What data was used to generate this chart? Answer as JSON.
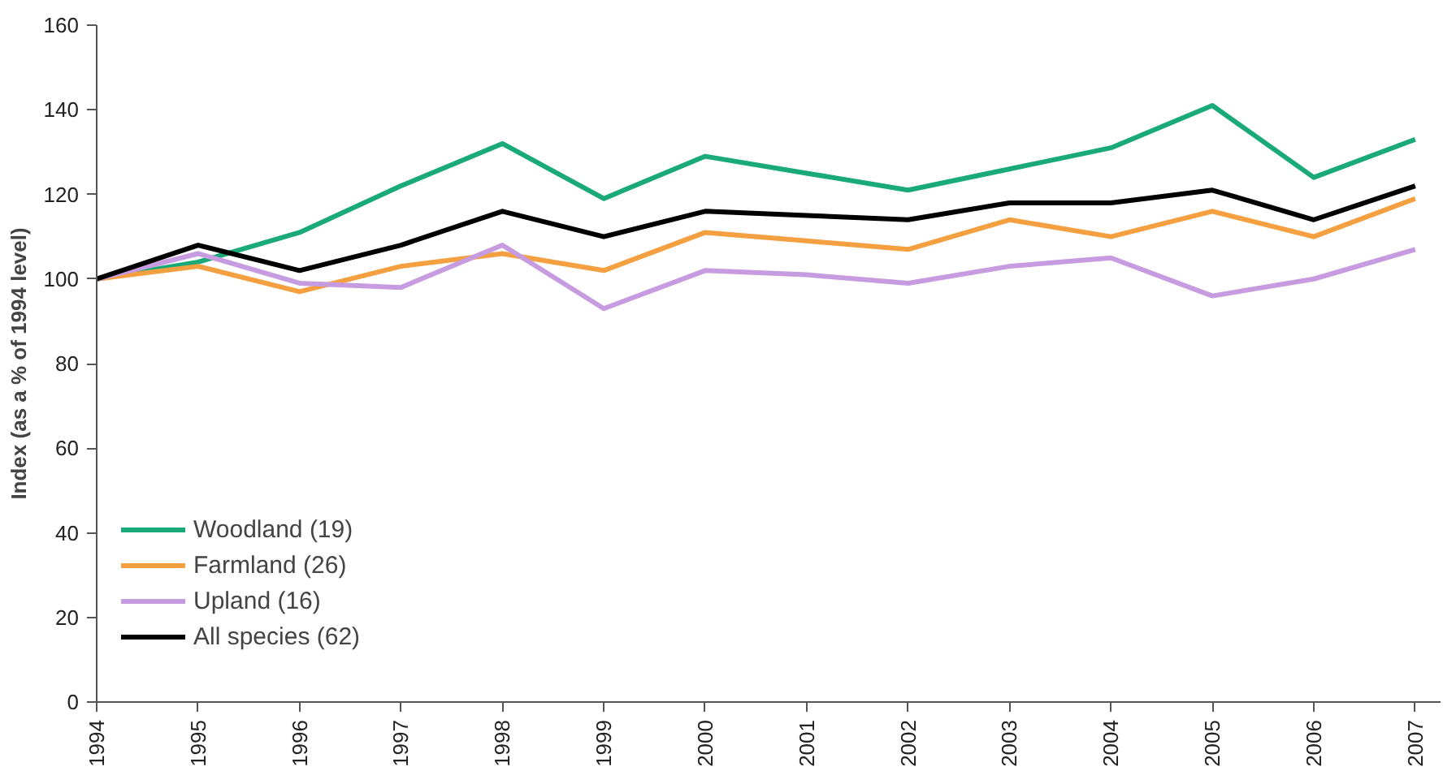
{
  "chart_data": {
    "type": "line",
    "ylabel": "Index (as a % of 1994 level)",
    "categories": [
      "1994",
      "1995",
      "1996",
      "1997",
      "1998",
      "1999",
      "2000",
      "2001",
      "2002",
      "2003",
      "2004",
      "2005",
      "2006",
      "2007"
    ],
    "series": [
      {
        "name": "Woodland (19)",
        "color": "#1aaa7a",
        "values": [
          100,
          104,
          111,
          122,
          132,
          119,
          129,
          125,
          121,
          126,
          131,
          141,
          124,
          133
        ]
      },
      {
        "name": "Farmland (26)",
        "color": "#f5a040",
        "values": [
          100,
          103,
          97,
          103,
          106,
          102,
          111,
          109,
          107,
          114,
          110,
          116,
          110,
          119
        ]
      },
      {
        "name": "Upland (16)",
        "color": "#c79be0",
        "values": [
          100,
          106,
          99,
          98,
          108,
          93,
          102,
          101,
          99,
          103,
          105,
          96,
          100,
          107
        ]
      },
      {
        "name": "All species (62)",
        "color": "#000000",
        "values": [
          100,
          108,
          102,
          108,
          116,
          110,
          116,
          115,
          114,
          118,
          118,
          121,
          114,
          122
        ]
      }
    ],
    "ylim": [
      0,
      160
    ],
    "yticks": [
      0,
      20,
      40,
      60,
      80,
      100,
      120,
      140,
      160
    ],
    "grid": false,
    "legend": "left",
    "marker": "none",
    "line_style": "solid"
  }
}
